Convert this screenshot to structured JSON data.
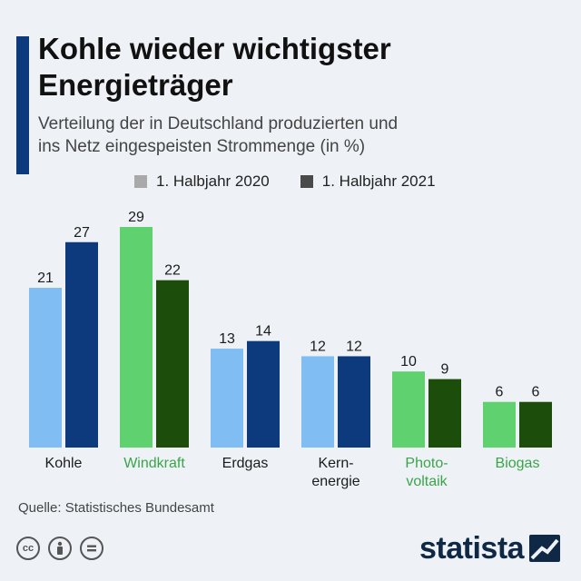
{
  "header": {
    "title": "Kohle wieder wichtigster\nEnergieträger",
    "subtitle": "Verteilung der in Deutschland produzierten und\nins Netz eingespeisten Strommenge (in %)"
  },
  "legend": {
    "items": [
      {
        "label": "1. Halbjahr 2020",
        "color": "#a9a9a9"
      },
      {
        "label": "1. Halbjahr 2021",
        "color": "#4a4a4a"
      }
    ]
  },
  "chart_data": {
    "type": "bar",
    "title": "Kohle wieder wichtigster Energieträger",
    "subtitle": "Verteilung der in Deutschland produzierten und ins Netz eingespeisten Strommenge (in %)",
    "categories": [
      "Kohle",
      "Windkraft",
      "Erdgas",
      "Kern-\nenergie",
      "Photo-\nvoltaik",
      "Biogas"
    ],
    "category_colors": [
      "#1b1b1b",
      "#3aa548",
      "#1b1b1b",
      "#1b1b1b",
      "#3aa548",
      "#3aa548"
    ],
    "series": [
      {
        "name": "1. Halbjahr 2020",
        "values": [
          21,
          29,
          13,
          12,
          10,
          6
        ]
      },
      {
        "name": "1. Halbjahr 2021",
        "values": [
          27,
          22,
          14,
          12,
          9,
          6
        ]
      }
    ],
    "bar_colors": {
      "fossil": [
        "#80bdf2",
        "#0c3a7d"
      ],
      "renewable": [
        "#5fd16e",
        "#1d4d0a"
      ]
    },
    "renewable": [
      false,
      true,
      false,
      false,
      true,
      true
    ],
    "ylim": [
      0,
      30
    ],
    "xlabel": "",
    "ylabel": "",
    "grid": false,
    "legend_position": "top"
  },
  "footer": {
    "source": "Quelle: Statistisches Bundesamt",
    "brand": "statista",
    "license_icons": [
      "cc-icon",
      "by-icon",
      "nd-icon"
    ]
  }
}
